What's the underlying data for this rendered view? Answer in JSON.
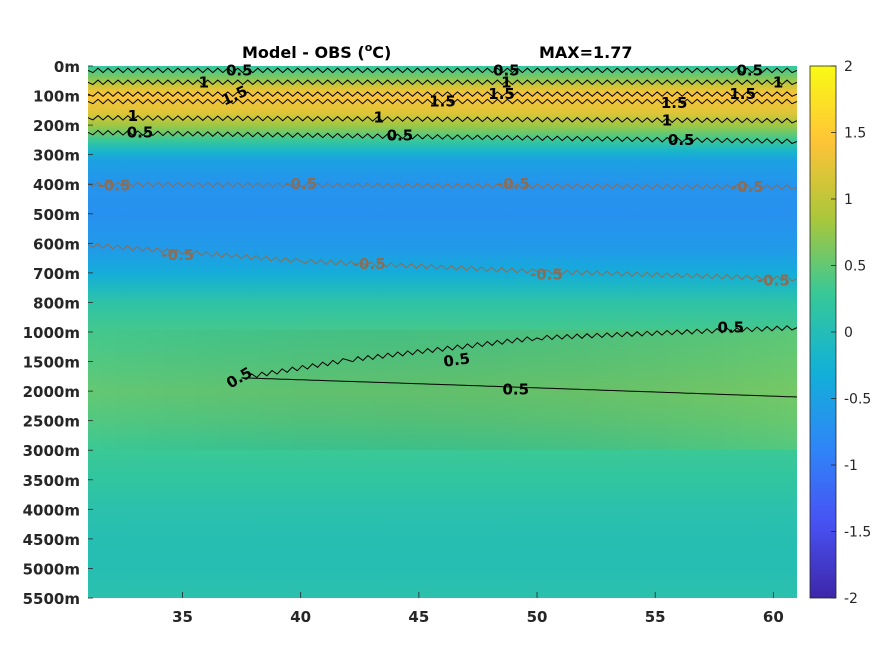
{
  "chart_data": {
    "type": "heatmap",
    "title_main": "Model - OBS (",
    "title_degree": "o",
    "title_unit": "C)",
    "title_max": "MAX=1.77",
    "x_ticks": [
      35,
      40,
      45,
      50,
      55,
      60
    ],
    "xlim": [
      31,
      61
    ],
    "y_labels": [
      "0m",
      "100m",
      "200m",
      "300m",
      "400m",
      "500m",
      "600m",
      "700m",
      "800m",
      "1000m",
      "1500m",
      "2000m",
      "2500m",
      "3000m",
      "3500m",
      "4000m",
      "4500m",
      "5000m",
      "5500m"
    ],
    "colorbar_ticks": [
      "2",
      "1.5",
      "1",
      "0.5",
      "0",
      "-0.5",
      "-1",
      "-1.5",
      "-2"
    ],
    "clim": [
      -2,
      2
    ],
    "colormap": "parula",
    "depth_profile": [
      {
        "level": 0.0,
        "value": 0.2
      },
      {
        "level": 0.12,
        "value": 0.35
      },
      {
        "level": 0.45,
        "value": 0.7
      },
      {
        "level": 0.6,
        "value": 1.0
      },
      {
        "level": 0.85,
        "value": 1.3
      },
      {
        "level": 1.0,
        "value": 1.4
      },
      {
        "level": 1.6,
        "value": 1.2
      },
      {
        "level": 2.0,
        "value": 0.8
      },
      {
        "level": 2.5,
        "value": 0.3
      },
      {
        "level": 2.9,
        "value": -0.2
      },
      {
        "level": 3.2,
        "value": -0.5
      },
      {
        "level": 4.0,
        "value": -0.68
      },
      {
        "level": 5.0,
        "value": -0.72
      },
      {
        "level": 6.2,
        "value": -0.6
      },
      {
        "level": 7.0,
        "value": -0.35
      },
      {
        "level": 7.6,
        "value": -0.05
      },
      {
        "level": 8.0,
        "value": 0.15
      },
      {
        "level": 9.0,
        "value": 0.35
      },
      {
        "level": 10.0,
        "value": 0.42
      },
      {
        "level": 11.0,
        "value": 0.5
      },
      {
        "level": 12.0,
        "value": 0.42
      },
      {
        "level": 13.0,
        "value": 0.3
      },
      {
        "level": 14.0,
        "value": 0.2
      },
      {
        "level": 15.0,
        "value": 0.1
      },
      {
        "level": 16.0,
        "value": 0.04
      },
      {
        "level": 17.0,
        "value": 0.03
      },
      {
        "level": 18.0,
        "value": 0.1
      }
    ],
    "contours": [
      {
        "label": "0.5",
        "color": "#000000",
        "level_path": [
          [
            31,
            0.15
          ],
          [
            61,
            0.15
          ]
        ],
        "wiggle": true
      },
      {
        "label": "1",
        "color": "#000000",
        "level_path": [
          [
            31,
            0.55
          ],
          [
            61,
            0.55
          ]
        ],
        "wiggle": true
      },
      {
        "label": "1.5",
        "color": "#000000",
        "level_path": [
          [
            31,
            0.95
          ],
          [
            61,
            0.95
          ]
        ],
        "wiggle": true
      },
      {
        "label": "1.5",
        "color": "#000000",
        "level_path": [
          [
            31,
            1.2
          ],
          [
            61,
            1.2
          ]
        ],
        "wiggle": true
      },
      {
        "label": "1",
        "color": "#000000",
        "level_path": [
          [
            31,
            1.75
          ],
          [
            61,
            1.85
          ]
        ],
        "wiggle": true
      },
      {
        "label": "0.5",
        "color": "#000000",
        "level_path": [
          [
            31,
            2.25
          ],
          [
            61,
            2.55
          ]
        ],
        "wiggle": true
      },
      {
        "label": "-0.5",
        "color": "#8a6d57",
        "level_path": [
          [
            31,
            4.0
          ],
          [
            61,
            4.1
          ]
        ],
        "wiggle": true
      },
      {
        "label": "-0.5",
        "color": "#8a6d57",
        "level_path": [
          [
            31,
            6.05
          ],
          [
            40,
            6.6
          ],
          [
            50,
            6.95
          ],
          [
            61,
            7.2
          ]
        ],
        "wiggle": true
      },
      {
        "label": "0.5",
        "color": "#000000",
        "level_path": [
          [
            37.5,
            10.55
          ],
          [
            42,
            9.95
          ],
          [
            50,
            9.2
          ],
          [
            61,
            8.85
          ]
        ],
        "wiggle": true
      },
      {
        "label": "0.5",
        "color": "#000000",
        "level_path": [
          [
            37.5,
            10.55
          ],
          [
            45,
            10.75
          ],
          [
            61,
            11.2
          ]
        ],
        "wiggle": false
      }
    ],
    "contour_labels": [
      {
        "text": "0.5",
        "x": 37.4,
        "lv": 0.15,
        "color": "#000000"
      },
      {
        "text": "1",
        "x": 35.9,
        "lv": 0.55,
        "color": "#000000"
      },
      {
        "text": "1.5",
        "x": 37.2,
        "lv": 1.0,
        "color": "#000000",
        "rot": -25
      },
      {
        "text": "1",
        "x": 32.9,
        "lv": 1.7,
        "color": "#000000"
      },
      {
        "text": "0.5",
        "x": 33.2,
        "lv": 2.25,
        "color": "#000000"
      },
      {
        "text": "0.5",
        "x": 48.7,
        "lv": 0.15,
        "color": "#000000"
      },
      {
        "text": "1",
        "x": 48.7,
        "lv": 0.55,
        "color": "#000000"
      },
      {
        "text": "1.5",
        "x": 48.5,
        "lv": 0.95,
        "color": "#000000"
      },
      {
        "text": "1.5",
        "x": 46.0,
        "lv": 1.2,
        "color": "#000000"
      },
      {
        "text": "1",
        "x": 43.3,
        "lv": 1.75,
        "color": "#000000"
      },
      {
        "text": "0.5",
        "x": 44.2,
        "lv": 2.35,
        "color": "#000000"
      },
      {
        "text": "0.5",
        "x": 59.0,
        "lv": 0.15,
        "color": "#000000"
      },
      {
        "text": "1",
        "x": 60.2,
        "lv": 0.55,
        "color": "#000000"
      },
      {
        "text": "1.5",
        "x": 58.7,
        "lv": 0.95,
        "color": "#000000"
      },
      {
        "text": "1.5",
        "x": 55.8,
        "lv": 1.25,
        "color": "#000000"
      },
      {
        "text": "1",
        "x": 55.5,
        "lv": 1.85,
        "color": "#000000"
      },
      {
        "text": "0.5",
        "x": 56.1,
        "lv": 2.5,
        "color": "#000000"
      },
      {
        "text": "-0.5",
        "x": 32.1,
        "lv": 4.05,
        "color": "#8a6d57"
      },
      {
        "text": "-0.5",
        "x": 40.0,
        "lv": 4.0,
        "color": "#8a6d57"
      },
      {
        "text": "-0.5",
        "x": 49.0,
        "lv": 4.0,
        "color": "#8a6d57"
      },
      {
        "text": "-0.5",
        "x": 58.9,
        "lv": 4.1,
        "color": "#8a6d57"
      },
      {
        "text": "-0.5",
        "x": 34.8,
        "lv": 6.4,
        "color": "#8a6d57"
      },
      {
        "text": "-0.5",
        "x": 42.9,
        "lv": 6.7,
        "color": "#8a6d57"
      },
      {
        "text": "-0.5",
        "x": 50.4,
        "lv": 7.05,
        "color": "#8a6d57"
      },
      {
        "text": "-0.5",
        "x": 60.0,
        "lv": 7.25,
        "color": "#8a6d57"
      },
      {
        "text": "0.5",
        "x": 37.4,
        "lv": 10.55,
        "color": "#000000",
        "rot": -30
      },
      {
        "text": "0.5",
        "x": 46.6,
        "lv": 9.95,
        "color": "#000000",
        "rot": -8
      },
      {
        "text": "0.5",
        "x": 58.2,
        "lv": 8.85,
        "color": "#000000"
      },
      {
        "text": "0.5",
        "x": 49.1,
        "lv": 10.95,
        "color": "#000000"
      }
    ]
  }
}
